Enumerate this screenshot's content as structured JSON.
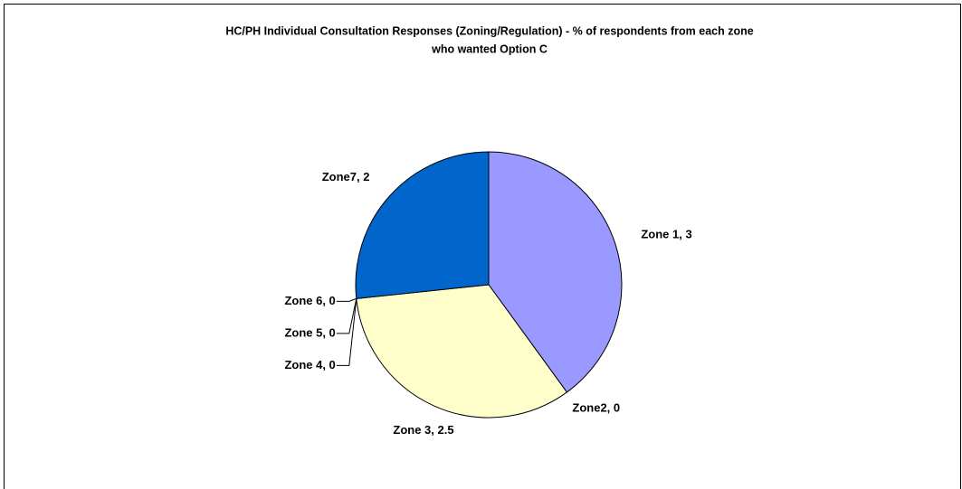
{
  "chart_data": {
    "type": "pie",
    "title": [
      "HC/PH Individual Consultation Responses (Zoning/Regulation) - % of respondents from each zone",
      "who wanted Option C"
    ],
    "values": [
      3,
      0,
      2.5,
      0,
      0,
      0,
      2
    ],
    "value_labels": [
      "Zone 1, 3",
      "Zone2, 0",
      "Zone 3, 2.5",
      "Zone 4, 0",
      "Zone 5, 0",
      "Zone 6, 0",
      "Zone7, 2"
    ],
    "colors": [
      "#9999ff",
      "#993366",
      "#ffffcc",
      "#ccffff",
      "#660066",
      "#ff8080",
      "#0066cc"
    ]
  }
}
